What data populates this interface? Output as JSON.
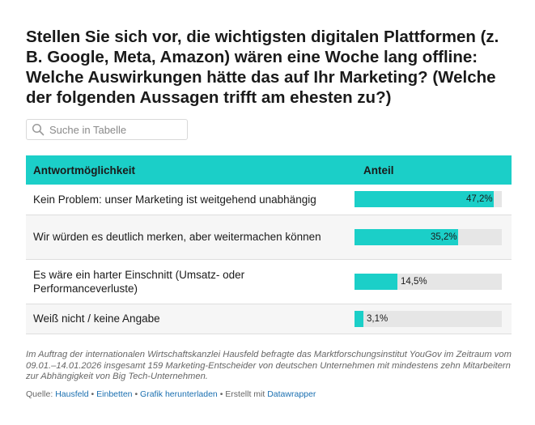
{
  "title": "Stellen Sie sich vor, die wichtigsten digitalen Plattformen (z. B. Google, Meta, Amazon) wären eine Woche lang offline: Welche Auswirkungen hätte das auf Ihr Marketing?  (Welche der folgenden Aussagen trifft am ehesten zu?)",
  "search": {
    "placeholder": "Suche in Tabelle"
  },
  "colors": {
    "accent": "#1bcfc8",
    "track": "#e6e6e6",
    "link": "#1a6fb0"
  },
  "chart_data": {
    "type": "table",
    "title": "Stellen Sie sich vor, die wichtigsten digitalen Plattformen (z. B. Google, Meta, Amazon) wären eine Woche lang offline: Welche Auswirkungen hätte das auf Ihr Marketing?  (Welche der folgenden Aussagen trifft am ehesten zu?)",
    "columns": [
      "Antwortmöglichkeit",
      "Anteil"
    ],
    "rows": [
      {
        "answer": "Kein Problem: unser Marketing ist weitgehend unabhängig",
        "value": 47.2,
        "label": "47,2%"
      },
      {
        "answer": "Wir würden es deutlich merken, aber weitermachen können",
        "value": 35.2,
        "label": "35,2%"
      },
      {
        "answer": "Es wäre ein harter Einschnitt (Umsatz- oder Performanceverluste)",
        "value": 14.5,
        "label": "14,5%"
      },
      {
        "answer": "Weiß nicht / keine Angabe",
        "value": 3.1,
        "label": "3,1%"
      }
    ],
    "bar_max": 50
  },
  "note": "Im Auftrag der internationalen Wirtschaftskanzlei Hausfeld befragte das Marktforschungsinstitut YouGov im Zeitraum vom 09.01.–14.01.2026 insgesamt 159 Marketing-Entscheider von deutschen Unternehmen mit mindestens zehn Mitarbeitern zur Abhängigkeit von Big Tech-Unternehmen.",
  "source": {
    "prefix": "Quelle: ",
    "source_link": "Hausfeld",
    "sep1": " • ",
    "embed_link": "Einbetten",
    "sep2": " • ",
    "download_link": "Grafik herunterladen",
    "sep3": " • ",
    "created_text": "Erstellt mit ",
    "datawrapper_link": "Datawrapper"
  }
}
